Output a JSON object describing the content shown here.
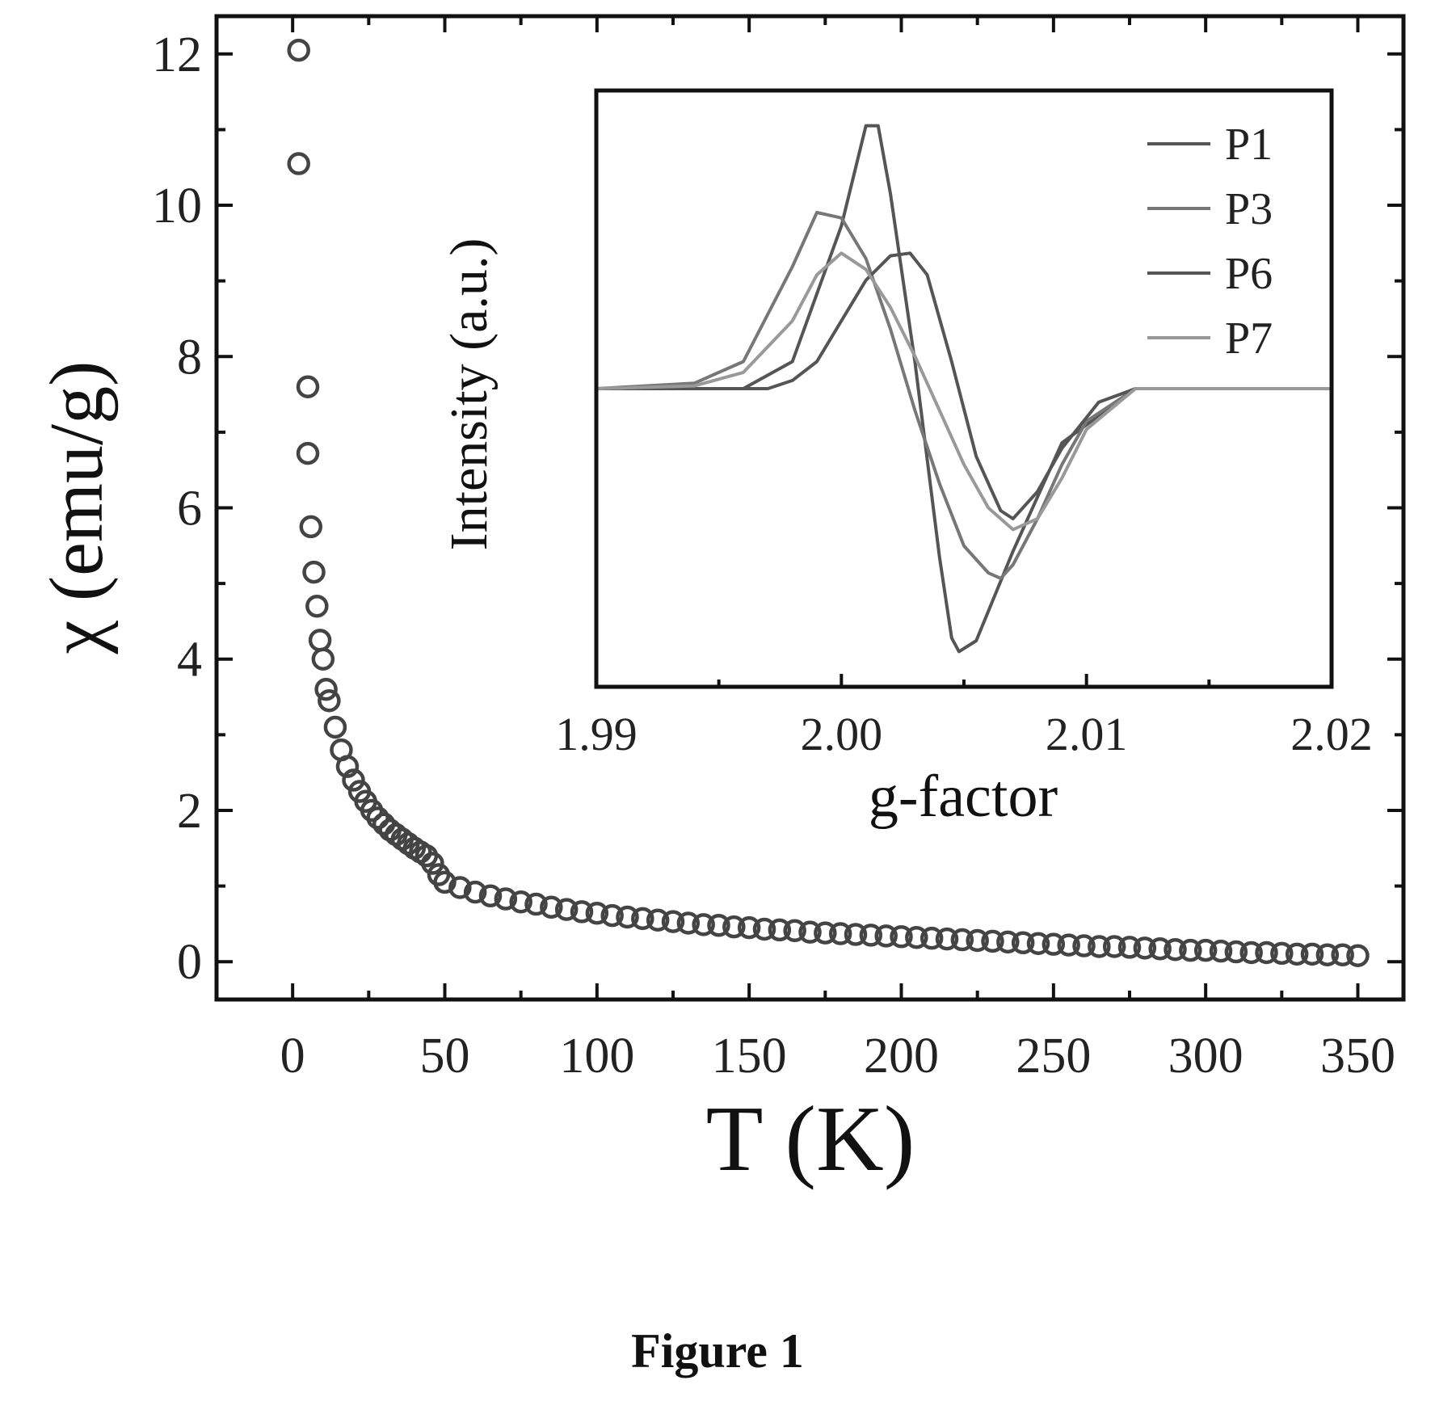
{
  "caption": "Figure 1",
  "chart_data": [
    {
      "type": "scatter",
      "xlabel": "T (K)",
      "ylabel": "χ (emu/g)",
      "xlim": [
        -25,
        365
      ],
      "ylim": [
        -0.5,
        12.5
      ],
      "xticks": [
        0,
        50,
        100,
        150,
        200,
        250,
        300,
        350
      ],
      "yticks": [
        0,
        2,
        4,
        6,
        8,
        10,
        12
      ],
      "xtick_labels": [
        "0",
        "50",
        "100",
        "150",
        "200",
        "250",
        "300",
        "350"
      ],
      "ytick_labels": [
        "0",
        "2",
        "4",
        "6",
        "8",
        "10",
        "12"
      ],
      "marker": "open-circle",
      "series": [
        {
          "x": [
            2,
            2,
            5,
            5,
            6,
            7,
            8,
            9,
            10,
            11,
            12,
            14,
            16,
            18,
            20,
            22,
            24,
            26,
            28,
            30,
            32,
            34,
            36,
            38,
            40,
            42,
            44,
            46,
            48,
            50,
            55,
            60,
            65,
            70,
            75,
            80,
            85,
            90,
            95,
            100,
            105,
            110,
            115,
            120,
            125,
            130,
            135,
            140,
            145,
            150,
            155,
            160,
            165,
            170,
            175,
            180,
            185,
            190,
            195,
            200,
            205,
            210,
            215,
            220,
            225,
            230,
            235,
            240,
            245,
            250,
            255,
            260,
            265,
            270,
            275,
            280,
            285,
            290,
            295,
            300,
            305,
            310,
            315,
            320,
            325,
            330,
            335,
            340,
            345,
            350
          ],
          "y": [
            12.05,
            10.55,
            7.6,
            6.72,
            5.75,
            5.15,
            4.7,
            4.25,
            4.0,
            3.6,
            3.45,
            3.1,
            2.8,
            2.58,
            2.4,
            2.25,
            2.12,
            2.0,
            1.9,
            1.82,
            1.74,
            1.68,
            1.62,
            1.56,
            1.5,
            1.45,
            1.4,
            1.3,
            1.15,
            1.05,
            0.98,
            0.92,
            0.87,
            0.83,
            0.79,
            0.76,
            0.72,
            0.69,
            0.66,
            0.64,
            0.61,
            0.59,
            0.57,
            0.55,
            0.53,
            0.51,
            0.49,
            0.48,
            0.46,
            0.45,
            0.43,
            0.42,
            0.41,
            0.39,
            0.38,
            0.37,
            0.36,
            0.35,
            0.34,
            0.33,
            0.32,
            0.31,
            0.3,
            0.29,
            0.28,
            0.27,
            0.26,
            0.25,
            0.24,
            0.23,
            0.22,
            0.21,
            0.2,
            0.2,
            0.19,
            0.18,
            0.17,
            0.16,
            0.15,
            0.15,
            0.14,
            0.13,
            0.12,
            0.12,
            0.11,
            0.1,
            0.1,
            0.09,
            0.09,
            0.08
          ]
        }
      ],
      "color": "#444444"
    },
    {
      "type": "line",
      "inset": true,
      "xlabel": "g-factor",
      "ylabel": "Intensity (a.u.)",
      "xlim": [
        1.99,
        2.02
      ],
      "ylim": [
        -1.1,
        1.1
      ],
      "xticks": [
        1.99,
        2.0,
        2.01,
        2.02
      ],
      "xtick_labels": [
        "1.99",
        "2.00",
        "2.01",
        "2.02"
      ],
      "legend": "top-right",
      "series": [
        {
          "name": "P1",
          "color": "#555555",
          "x": [
            1.99,
            1.996,
            1.998,
            2.0,
            2.001,
            2.0015,
            2.002,
            2.003,
            2.004,
            2.0045,
            2.0048,
            2.0055,
            2.007,
            2.009,
            2.012,
            2.02
          ],
          "y": [
            0,
            0,
            0.1,
            0.6,
            0.97,
            0.97,
            0.72,
            0.1,
            -0.62,
            -0.92,
            -0.97,
            -0.93,
            -0.6,
            -0.2,
            0,
            0
          ]
        },
        {
          "name": "P3",
          "color": "#777777",
          "x": [
            1.99,
            1.994,
            1.996,
            1.998,
            1.999,
            2.0,
            2.001,
            2.002,
            2.003,
            2.004,
            2.005,
            2.006,
            2.0065,
            2.007,
            2.008,
            2.009,
            2.01,
            2.012,
            2.02
          ],
          "y": [
            0,
            0.02,
            0.1,
            0.45,
            0.65,
            0.63,
            0.48,
            0.22,
            -0.08,
            -0.35,
            -0.58,
            -0.68,
            -0.7,
            -0.65,
            -0.48,
            -0.28,
            -0.12,
            0,
            0
          ]
        },
        {
          "name": "P6",
          "color": "#555555",
          "x": [
            1.99,
            1.997,
            1.998,
            1.999,
            2.0,
            2.001,
            2.002,
            2.0028,
            2.0035,
            2.0045,
            2.0055,
            2.0065,
            2.007,
            2.008,
            2.009,
            2.0105,
            2.012,
            2.02
          ],
          "y": [
            0,
            0,
            0.03,
            0.1,
            0.25,
            0.4,
            0.49,
            0.5,
            0.42,
            0.1,
            -0.25,
            -0.45,
            -0.48,
            -0.38,
            -0.22,
            -0.05,
            0,
            0
          ]
        },
        {
          "name": "P7",
          "color": "#999999",
          "x": [
            1.99,
            1.994,
            1.996,
            1.998,
            1.999,
            2.0,
            2.001,
            2.002,
            2.003,
            2.004,
            2.005,
            2.006,
            2.007,
            2.008,
            2.009,
            2.01,
            2.012,
            2.02
          ],
          "y": [
            0,
            0.01,
            0.06,
            0.25,
            0.42,
            0.5,
            0.44,
            0.3,
            0.12,
            -0.08,
            -0.28,
            -0.44,
            -0.52,
            -0.48,
            -0.33,
            -0.15,
            0,
            0
          ]
        }
      ]
    }
  ]
}
